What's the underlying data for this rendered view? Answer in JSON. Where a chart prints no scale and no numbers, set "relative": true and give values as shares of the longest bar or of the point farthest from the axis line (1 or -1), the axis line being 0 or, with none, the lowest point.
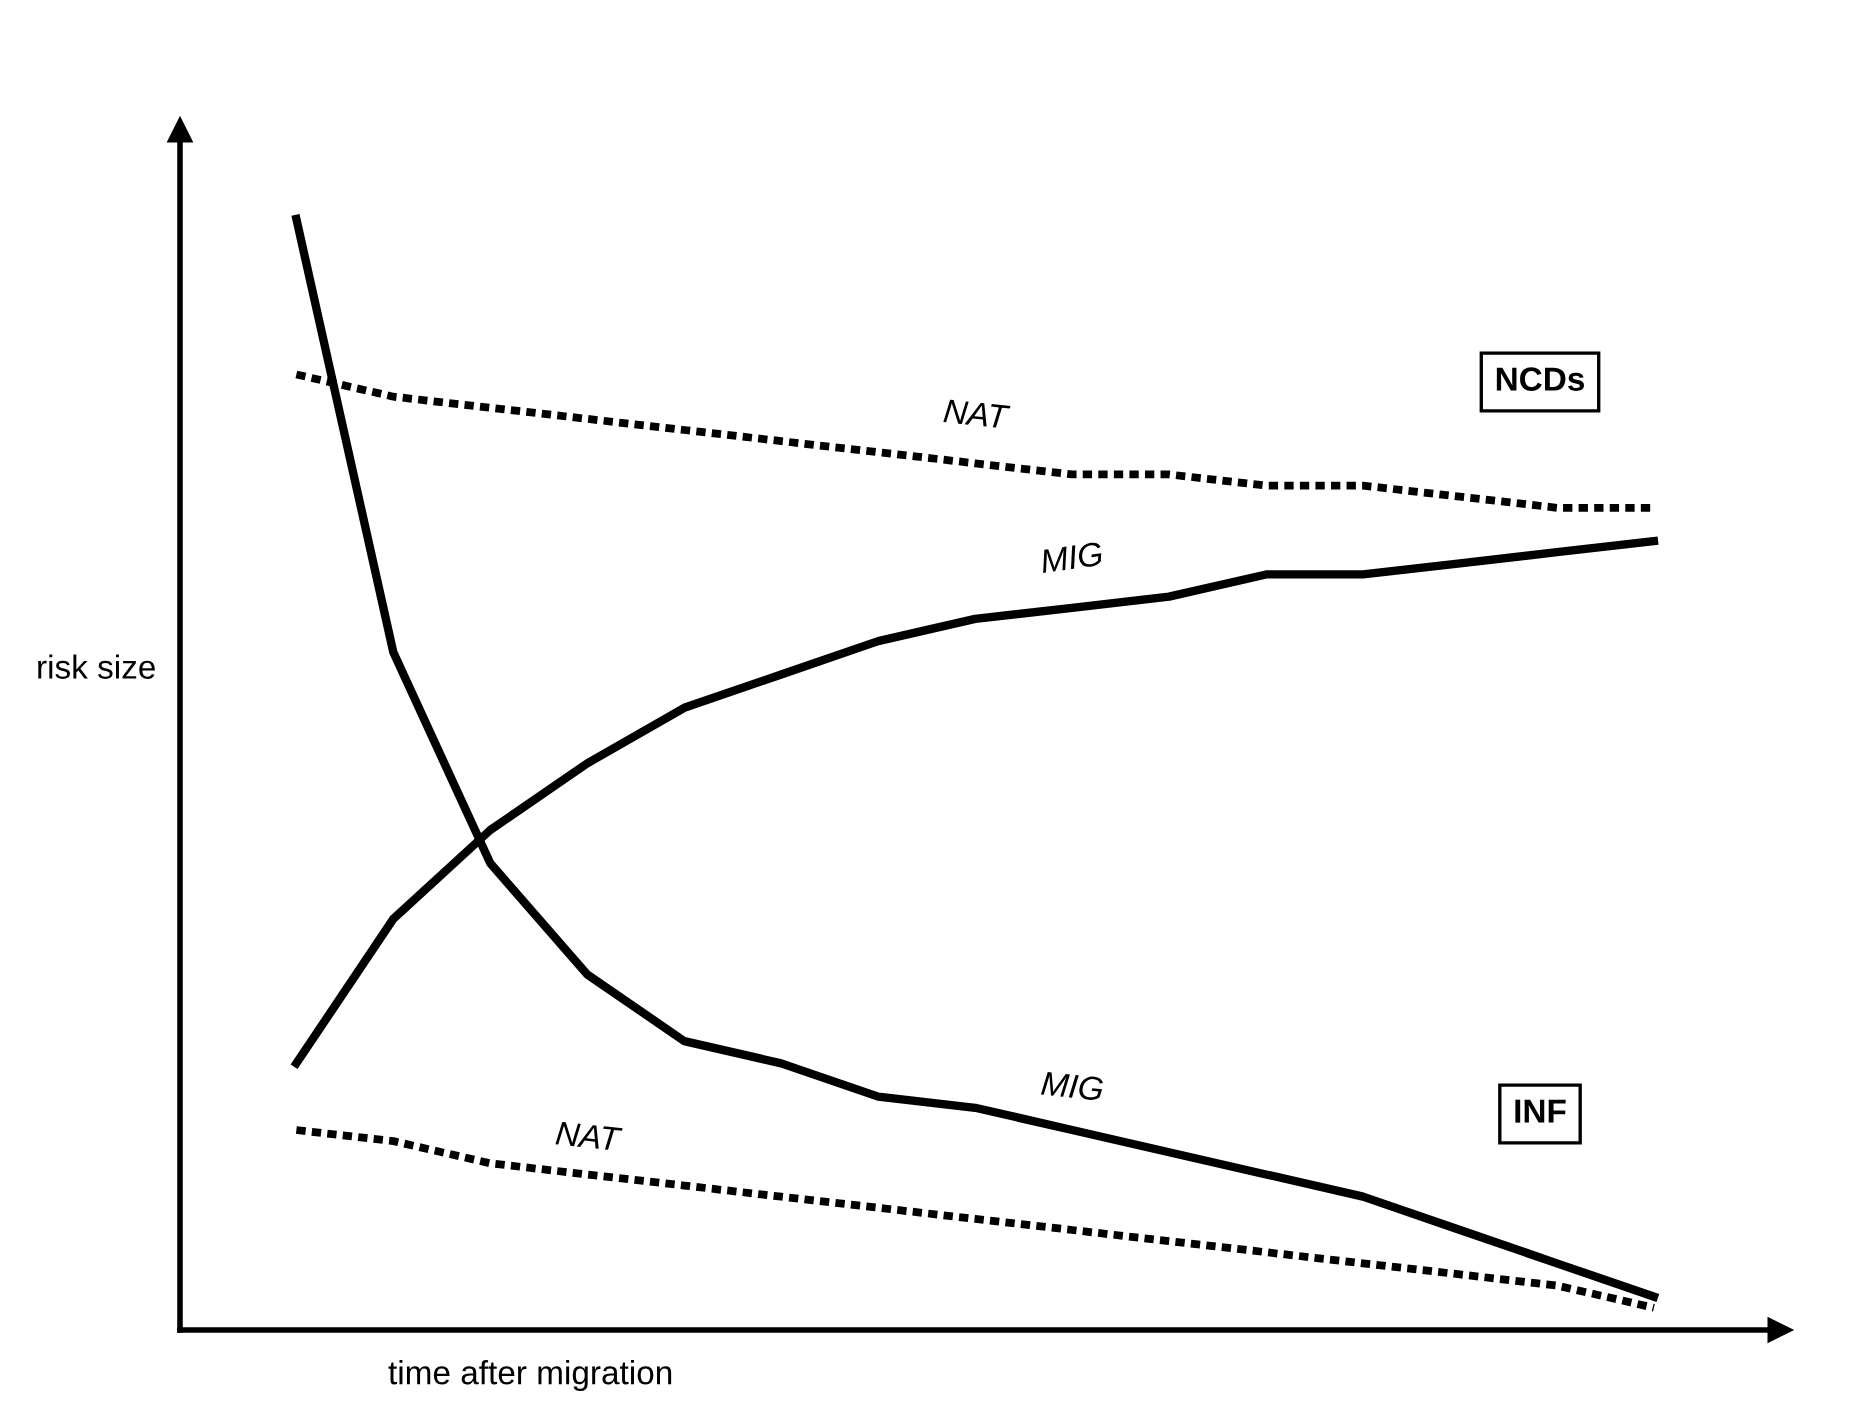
{
  "chart_data": {
    "type": "line",
    "relative": true,
    "xlabel": "time after migration",
    "ylabel": "risk size",
    "categories": [
      null,
      null,
      null,
      null,
      null,
      null,
      null,
      null,
      null,
      null,
      null,
      null,
      null,
      null,
      null
    ],
    "series": [
      {
        "name": "NAT",
        "color": "#000000",
        "line_style": "dotted",
        "values": [
          0.86,
          0.84,
          0.83,
          0.82,
          0.81,
          0.8,
          0.79,
          0.78,
          0.77,
          0.77,
          0.76,
          0.76,
          0.75,
          0.74,
          0.74
        ]
      },
      {
        "name": "MIG",
        "color": "#000000",
        "line_style": "solid",
        "values": [
          0.24,
          0.37,
          0.45,
          0.51,
          0.56,
          0.59,
          0.62,
          0.64,
          0.65,
          0.66,
          0.68,
          0.68,
          0.69,
          0.7,
          0.71
        ]
      },
      {
        "name": "MIG",
        "color": "#000000",
        "line_style": "solid",
        "values": [
          1.0,
          0.61,
          0.42,
          0.32,
          0.26,
          0.24,
          0.21,
          0.2,
          0.18,
          0.16,
          0.14,
          0.12,
          0.09,
          0.06,
          0.03
        ]
      },
      {
        "name": "NAT",
        "color": "#000000",
        "line_style": "dotted",
        "values": [
          0.18,
          0.17,
          0.15,
          0.14,
          0.13,
          0.12,
          0.11,
          0.1,
          0.09,
          0.08,
          0.07,
          0.06,
          0.05,
          0.04,
          0.02
        ]
      }
    ],
    "annotations": [
      "NCDs",
      "INF"
    ],
    "grid": false,
    "legend": false,
    "marker": "none"
  }
}
